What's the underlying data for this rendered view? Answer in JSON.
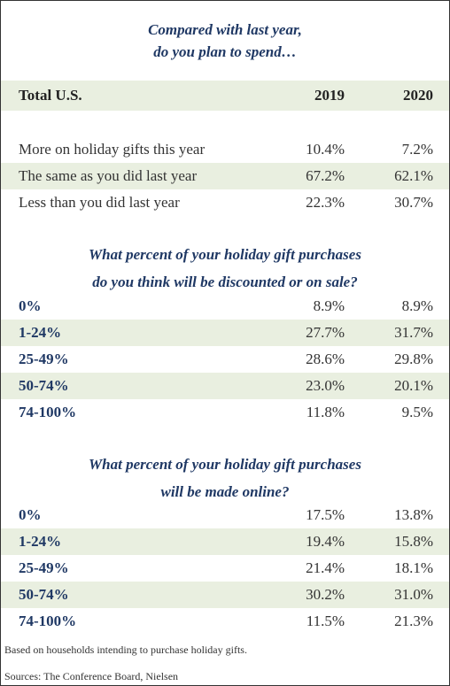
{
  "title": [
    "Compared with last year,",
    "do you plan to spend…"
  ],
  "header": [
    "Total U.S.",
    "2019",
    "2020"
  ],
  "sections": [
    {
      "rows": [
        [
          "More on holiday gifts this year",
          "10.4%",
          "7.2%"
        ],
        [
          "The same as you did last year",
          "67.2%",
          "62.1%"
        ],
        [
          "Less than you did last year",
          "22.3%",
          "30.7%"
        ]
      ]
    },
    {
      "title": [
        "What percent of your holiday gift purchases",
        "do you think will be discounted or on sale?"
      ],
      "rows": [
        [
          "0%",
          "8.9%",
          "8.9%"
        ],
        [
          "1-24%",
          "27.7%",
          "31.7%"
        ],
        [
          "25-49%",
          "28.6%",
          "29.8%"
        ],
        [
          "50-74%",
          "23.0%",
          "20.1%"
        ],
        [
          "74-100%",
          "11.8%",
          "9.5%"
        ]
      ]
    },
    {
      "title": [
        "What percent of your holiday gift purchases",
        "will be made online?"
      ],
      "rows": [
        [
          "0%",
          "17.5%",
          "13.8%"
        ],
        [
          "1-24%",
          "19.4%",
          "15.8%"
        ],
        [
          "25-49%",
          "21.4%",
          "18.1%"
        ],
        [
          "50-74%",
          "30.2%",
          "31.0%"
        ],
        [
          "74-100%",
          "11.5%",
          "21.3%"
        ]
      ]
    }
  ],
  "notes": [
    "Based on households intending to purchase holiday gifts.",
    "Sources: The Conference Board, Nielsen"
  ]
}
